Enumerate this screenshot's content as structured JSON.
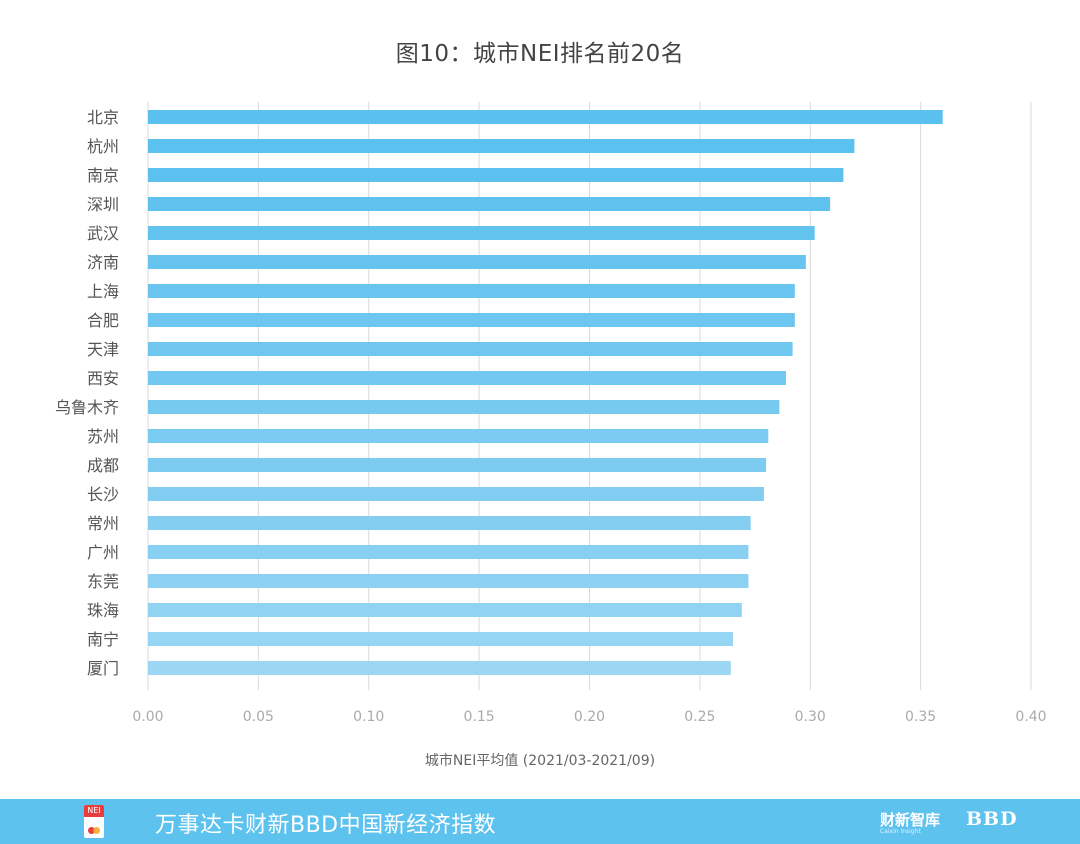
{
  "chart_data": {
    "type": "bar",
    "orientation": "horizontal",
    "title": "图10：城市NEI排名前20名",
    "xlabel": "城市NEI平均值 (2021/03-2021/09)",
    "ylabel": "",
    "xlim": [
      0,
      0.4
    ],
    "xticks": [
      "0.00",
      "0.05",
      "0.10",
      "0.15",
      "0.20",
      "0.25",
      "0.30",
      "0.35",
      "0.40"
    ],
    "categories": [
      "北京",
      "杭州",
      "南京",
      "深圳",
      "武汉",
      "济南",
      "上海",
      "合肥",
      "天津",
      "西安",
      "乌鲁木齐",
      "苏州",
      "成都",
      "长沙",
      "常州",
      "广州",
      "东莞",
      "珠海",
      "南宁",
      "厦门"
    ],
    "values": [
      0.36,
      0.32,
      0.315,
      0.309,
      0.302,
      0.298,
      0.293,
      0.293,
      0.292,
      0.289,
      0.286,
      0.281,
      0.28,
      0.279,
      0.273,
      0.272,
      0.272,
      0.269,
      0.265,
      0.264
    ],
    "colors": [
      "#5ac0ef",
      "#5bc1ef",
      "#5dc1ef",
      "#60c2ef",
      "#63c3ef",
      "#66c4ef",
      "#69c5f0",
      "#6cc6f0",
      "#6fc7f0",
      "#72c8f0",
      "#76caf0",
      "#79cbf1",
      "#7ccbf1",
      "#80cdf1",
      "#84cef1",
      "#88d0f2",
      "#8cd1f2",
      "#91d3f2",
      "#96d5f3",
      "#9bd7f3"
    ],
    "grid": true
  },
  "footer": {
    "logo_text": "NEI",
    "text": "万事达卡财新BBD中国新经济指数",
    "brand1": "财新智库",
    "brand1_sub": "Caixin Insight",
    "brand2": "BBD"
  },
  "colors": {
    "footer_bg": "#5ec2ef",
    "grid": "#d9d9d9"
  }
}
